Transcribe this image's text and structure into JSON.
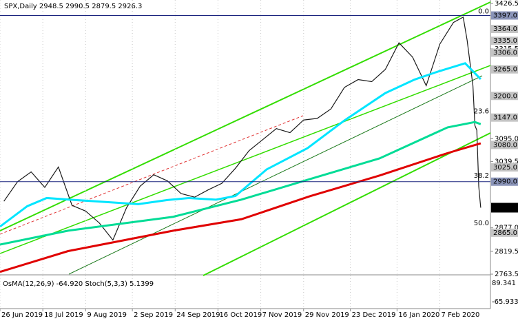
{
  "chart_data": {
    "type": "line",
    "title": "SPX,Daily 2948.5 2990.5 2879.5 2926.3",
    "ylim": [
      2763.5,
      3426.5
    ],
    "yticks": [
      3426.5,
      3315.5,
      {
        "value": 3095,
        "label": "3095.0"
      },
      3039.5,
      {
        "value": 2877,
        "label": "2877.0"
      },
      2819.5,
      2763.5
    ],
    "xlim": [
      "2019-06-26",
      "2020-03-04"
    ],
    "xticks": [
      {
        "value": "2019-06-26",
        "label": "26 Jun 2019"
      },
      {
        "value": "2019-07-18",
        "label": "18 Jul 2019"
      },
      {
        "value": "2019-08-09",
        "label": "9 Aug 2019"
      },
      {
        "value": "2019-09-02",
        "label": "2 Sep 2019"
      },
      {
        "value": "2019-09-24",
        "label": "24 Sep 2019"
      },
      {
        "value": "2019-10-16",
        "label": "16 Oct 2019"
      },
      {
        "value": "2019-11-07",
        "label": "7 Nov 2019"
      },
      {
        "value": "2019-11-29",
        "label": "29 Nov 2019"
      },
      {
        "value": "2019-12-23",
        "label": "23 Dec 2019"
      },
      {
        "value": "2020-01-16",
        "label": "16 Jan 2020"
      },
      {
        "value": "2020-02-07",
        "label": "7 Feb 2020"
      }
    ],
    "grid": true,
    "last": 2926.3,
    "levels": [
      {
        "value": 3397,
        "label": "3397.0",
        "highlight": true
      },
      {
        "value": 3364,
        "label": "3364.0"
      },
      {
        "value": 3335,
        "label": "3335.0"
      },
      {
        "value": 3306,
        "label": "3306.0"
      },
      {
        "value": 3265,
        "label": "3265.0"
      },
      {
        "value": 3200,
        "label": "3200.0"
      },
      {
        "value": 3147,
        "label": "3147.0"
      },
      {
        "value": 3080,
        "label": "3080.0"
      },
      {
        "value": 3025,
        "label": "3025.0"
      },
      {
        "value": 2990,
        "label": "2990.0",
        "highlight": true
      },
      {
        "value": 2865,
        "label": "2865.0"
      }
    ],
    "fib_levels": [
      {
        "value": 3397,
        "label": "0.0"
      },
      {
        "value": 3152,
        "label": "23.6"
      },
      {
        "value": 2995,
        "label": "38.2"
      },
      {
        "value": 2878,
        "label": "50.0"
      }
    ],
    "series": [
      {
        "color": "#1a1a1a",
        "x": [
          "2019-06-28",
          "2019-07-05",
          "2019-07-12",
          "2019-07-19",
          "2019-07-26",
          "2019-08-02",
          "2019-08-09",
          "2019-08-16",
          "2019-08-23",
          "2019-08-30",
          "2019-09-06",
          "2019-09-13",
          "2019-09-20",
          "2019-09-27",
          "2019-10-04",
          "2019-10-11",
          "2019-10-18",
          "2019-10-25",
          "2019-11-01",
          "2019-11-08",
          "2019-11-15",
          "2019-11-22",
          "2019-11-29",
          "2019-12-06",
          "2019-12-13",
          "2019-12-20",
          "2019-12-27",
          "2020-01-03",
          "2020-01-10",
          "2020-01-17",
          "2020-01-24",
          "2020-01-31",
          "2020-02-07",
          "2020-02-14",
          "2020-02-19",
          "2020-02-21",
          "2020-02-24",
          "2020-02-25",
          "2020-02-26",
          "2020-02-27",
          "2020-02-28"
        ],
        "values": [
          2942,
          2990,
          3014,
          2976,
          3026,
          2932,
          2918,
          2889,
          2847,
          2926,
          2979,
          3007,
          2992,
          2961,
          2952,
          2970,
          2986,
          3023,
          3066,
          3093,
          3120,
          3110,
          3141,
          3145,
          3168,
          3221,
          3240,
          3235,
          3265,
          3330,
          3295,
          3225,
          3327,
          3380,
          3393,
          3337,
          3225,
          3128,
          3116,
          2978,
          2926.3
        ]
      },
      {
        "color": "#00e5ff",
        "x": [
          "2019-06-26",
          "2019-07-10",
          "2019-07-20",
          "2019-08-01",
          "2019-08-20",
          "2019-09-05",
          "2019-09-20",
          "2019-10-01",
          "2019-10-15",
          "2019-10-25",
          "2019-11-10",
          "2019-12-01",
          "2019-12-20",
          "2020-01-10",
          "2020-01-25",
          "2020-02-05",
          "2020-02-20",
          "2020-02-28"
        ],
        "values": [
          2880,
          2930,
          2950,
          2946,
          2940,
          2935,
          2945,
          2950,
          2946,
          2955,
          3020,
          3072,
          3140,
          3207,
          3240,
          3258,
          3280,
          3241
        ]
      },
      {
        "color": "#00dc96",
        "x": [
          "2019-06-26",
          "2019-07-31",
          "2019-09-23",
          "2019-10-28",
          "2019-12-02",
          "2020-01-07",
          "2020-02-11",
          "2020-02-25",
          "2020-02-28"
        ],
        "values": [
          2836,
          2870,
          2904,
          2946,
          2996,
          3047,
          3123,
          3136,
          3131
        ]
      },
      {
        "color": "#e00000",
        "x": [
          "2019-06-26",
          "2019-07-31",
          "2019-09-23",
          "2019-10-28",
          "2019-12-02",
          "2020-01-07",
          "2020-02-11",
          "2020-02-28"
        ],
        "values": [
          2769,
          2820,
          2870,
          2898,
          2954,
          3005,
          3060,
          3084
        ]
      }
    ],
    "oscillator": {
      "label": "OsMA(12,26,9) -64.920 Stoch(5,3,3) 5.1399",
      "ticks": [
        "89.341",
        "-65.933"
      ]
    }
  }
}
